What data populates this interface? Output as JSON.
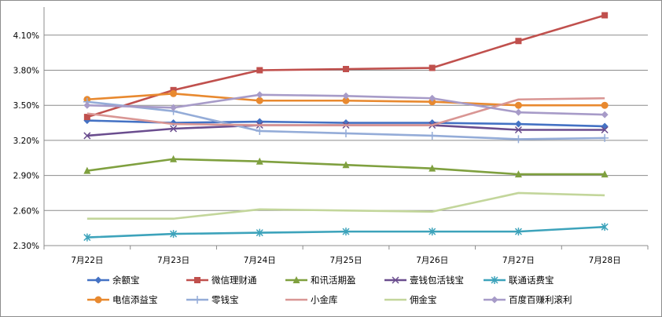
{
  "chart_data": {
    "type": "line",
    "title": "",
    "xlabel": "",
    "ylabel": "",
    "categories": [
      "7月22日",
      "7月23日",
      "7月24日",
      "7月25日",
      "7月26日",
      "7月27日",
      "7月28日"
    ],
    "y_ticks": [
      "2.30%",
      "2.60%",
      "2.90%",
      "3.20%",
      "3.50%",
      "3.80%",
      "4.10%"
    ],
    "ylim": [
      2.3,
      4.1
    ],
    "grid": "horizontal",
    "legend_position": "bottom",
    "series": [
      {
        "name": "余额宝",
        "color": "#4472C4",
        "marker": "diamond",
        "values": [
          3.37,
          3.35,
          3.36,
          3.35,
          3.35,
          3.34,
          3.32
        ]
      },
      {
        "name": "微信理财通",
        "color": "#C0504D",
        "marker": "square",
        "values": [
          3.4,
          3.63,
          3.8,
          3.81,
          3.82,
          4.05,
          4.27
        ]
      },
      {
        "name": "和讯活期盈",
        "color": "#7FA03F",
        "marker": "triangle",
        "values": [
          2.94,
          3.04,
          3.02,
          2.99,
          2.96,
          2.91,
          2.91
        ]
      },
      {
        "name": "壹钱包活钱宝",
        "color": "#6A4D8E",
        "marker": "x",
        "values": [
          3.24,
          3.3,
          3.33,
          3.33,
          3.33,
          3.29,
          3.29
        ]
      },
      {
        "name": "联通话费宝",
        "color": "#3DA3BB",
        "marker": "star",
        "values": [
          2.37,
          2.4,
          2.41,
          2.42,
          2.42,
          2.42,
          2.46
        ]
      },
      {
        "name": "电信添益宝",
        "color": "#E8892F",
        "marker": "circle",
        "values": [
          3.55,
          3.6,
          3.54,
          3.54,
          3.53,
          3.5,
          3.5
        ]
      },
      {
        "name": "零钱宝",
        "color": "#94ACD8",
        "marker": "plus",
        "values": [
          3.53,
          3.45,
          3.28,
          3.26,
          3.24,
          3.21,
          3.22
        ]
      },
      {
        "name": "小金库",
        "color": "#D99694",
        "marker": "none",
        "values": [
          3.43,
          3.34,
          3.33,
          3.33,
          3.33,
          3.55,
          3.56
        ]
      },
      {
        "name": "佣金宝",
        "color": "#C3D69B",
        "marker": "none",
        "values": [
          2.53,
          2.53,
          2.61,
          2.6,
          2.59,
          2.75,
          2.73
        ]
      },
      {
        "name": "百度百赚利滚利",
        "color": "#A79BC8",
        "marker": "diamond",
        "values": [
          3.5,
          3.48,
          3.59,
          3.58,
          3.56,
          3.44,
          3.42
        ]
      }
    ]
  }
}
